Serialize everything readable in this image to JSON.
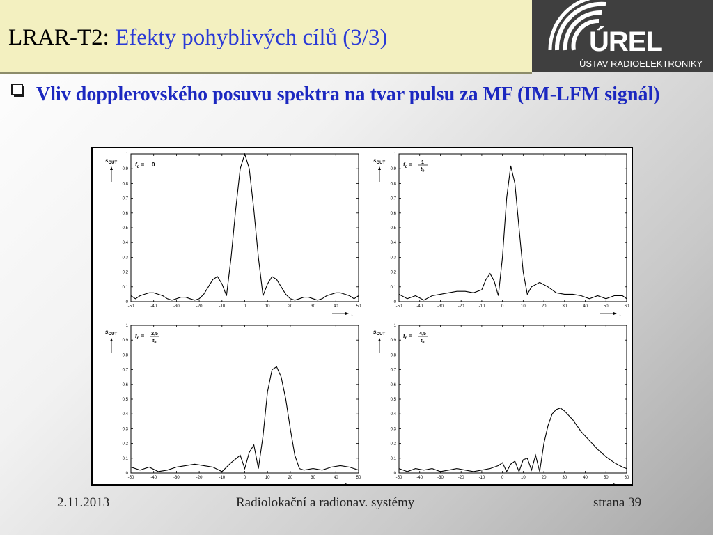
{
  "slide": {
    "title_prefix": "LRAR-T2:",
    "title_main": "Efekty pohyblivých cílů (3/3)",
    "heading": "Vliv dopplerovského posuvu spektra na tvar pulsu za MF (IM-LFM signál)",
    "logo_brand": "ÚREL",
    "logo_dept": "ÚSTAV RADIOELEKTRONIKY",
    "footer_date": "2.11.2013",
    "footer_title": "Radiolokační a radionav. systémy",
    "footer_page": "strana 39"
  },
  "colors": {
    "accent": "#2a3ad6",
    "heading": "#1c28c0",
    "header_bg": "#f3f0c0",
    "logo_bg": "#3f3f3f"
  },
  "chart_data": [
    {
      "type": "line",
      "ylabel": "s",
      "ylabel_sub": "OUT",
      "xlabel": "τ",
      "fd_label": "0",
      "xlim": [
        -50,
        50
      ],
      "ylim": [
        0,
        1
      ],
      "xticks": [
        "-50",
        "-40",
        "-30",
        "-20",
        "-10",
        "0",
        "10",
        "20",
        "30",
        "40",
        "50"
      ],
      "yticks": [
        "0",
        "0.1",
        "0.2",
        "0.3",
        "0.4",
        "0.5",
        "0.6",
        "0.7",
        "0.8",
        "0.9",
        "1"
      ],
      "x": [
        -50,
        -48,
        -46,
        -44,
        -42,
        -40,
        -38,
        -36,
        -34,
        -32,
        -30,
        -28,
        -26,
        -24,
        -22,
        -20,
        -18,
        -16,
        -14,
        -12,
        -10,
        -8,
        -6,
        -4,
        -2,
        0,
        2,
        4,
        6,
        8,
        10,
        12,
        14,
        16,
        18,
        20,
        22,
        24,
        26,
        28,
        30,
        32,
        34,
        36,
        38,
        40,
        42,
        44,
        46,
        48,
        50
      ],
      "y": [
        0.04,
        0.02,
        0.04,
        0.05,
        0.06,
        0.06,
        0.05,
        0.04,
        0.02,
        0.01,
        0.02,
        0.03,
        0.03,
        0.02,
        0.01,
        0.02,
        0.05,
        0.1,
        0.15,
        0.17,
        0.12,
        0.04,
        0.3,
        0.62,
        0.9,
        1.0,
        0.9,
        0.62,
        0.3,
        0.04,
        0.12,
        0.17,
        0.15,
        0.1,
        0.05,
        0.02,
        0.01,
        0.02,
        0.03,
        0.03,
        0.02,
        0.01,
        0.02,
        0.04,
        0.05,
        0.06,
        0.06,
        0.05,
        0.04,
        0.02,
        0.04
      ]
    },
    {
      "type": "line",
      "ylabel": "s",
      "ylabel_sub": "OUT",
      "xlabel": "τ",
      "fd_label": "1",
      "fd_den": "t",
      "fd_den_sub": "b",
      "xlim": [
        -50,
        60
      ],
      "ylim": [
        0,
        1
      ],
      "xticks": [
        "-50",
        "-40",
        "-30",
        "-20",
        "-10",
        "0",
        "10",
        "20",
        "30",
        "40",
        "50",
        "60"
      ],
      "yticks": [
        "0",
        "0.1",
        "0.2",
        "0.3",
        "0.4",
        "0.5",
        "0.6",
        "0.7",
        "0.8",
        "0.9",
        "1"
      ],
      "x": [
        -50,
        -46,
        -42,
        -38,
        -34,
        -30,
        -26,
        -22,
        -18,
        -14,
        -10,
        -8,
        -6,
        -4,
        -2,
        0,
        2,
        4,
        6,
        8,
        10,
        12,
        14,
        18,
        22,
        26,
        30,
        34,
        38,
        42,
        46,
        50,
        54,
        58,
        60
      ],
      "y": [
        0.05,
        0.02,
        0.04,
        0.01,
        0.04,
        0.05,
        0.06,
        0.07,
        0.07,
        0.06,
        0.08,
        0.15,
        0.19,
        0.14,
        0.04,
        0.3,
        0.7,
        0.92,
        0.8,
        0.5,
        0.2,
        0.05,
        0.1,
        0.13,
        0.1,
        0.06,
        0.05,
        0.05,
        0.04,
        0.02,
        0.04,
        0.02,
        0.04,
        0.04,
        0.02
      ]
    },
    {
      "type": "line",
      "ylabel": "s",
      "ylabel_sub": "OUT",
      "xlabel": "τ",
      "fd_label": "2,5",
      "fd_den": "t",
      "fd_den_sub": "b",
      "xlim": [
        -50,
        50
      ],
      "ylim": [
        0,
        1
      ],
      "xticks": [
        "-50",
        "-40",
        "-30",
        "-20",
        "-10",
        "0",
        "10",
        "20",
        "30",
        "40",
        "50"
      ],
      "yticks": [
        "0",
        "0.1",
        "0.2",
        "0.3",
        "0.4",
        "0.5",
        "0.6",
        "0.7",
        "0.8",
        "0.9",
        "1"
      ],
      "x": [
        -50,
        -46,
        -42,
        -38,
        -34,
        -30,
        -26,
        -22,
        -18,
        -14,
        -10,
        -6,
        -2,
        0,
        2,
        4,
        6,
        8,
        10,
        12,
        14,
        16,
        18,
        20,
        22,
        24,
        26,
        30,
        34,
        38,
        42,
        46,
        50
      ],
      "y": [
        0.04,
        0.02,
        0.04,
        0.01,
        0.02,
        0.04,
        0.05,
        0.06,
        0.05,
        0.04,
        0.01,
        0.07,
        0.12,
        0.03,
        0.14,
        0.19,
        0.03,
        0.25,
        0.55,
        0.7,
        0.72,
        0.65,
        0.5,
        0.3,
        0.12,
        0.03,
        0.02,
        0.03,
        0.02,
        0.04,
        0.05,
        0.04,
        0.02
      ]
    },
    {
      "type": "line",
      "ylabel": "s",
      "ylabel_sub": "OUT",
      "xlabel": "τ",
      "fd_label": "4,5",
      "fd_den": "t",
      "fd_den_sub": "b",
      "xlim": [
        -50,
        60
      ],
      "ylim": [
        0,
        1
      ],
      "xticks": [
        "-50",
        "-40",
        "-30",
        "-20",
        "-10",
        "0",
        "10",
        "20",
        "30",
        "40",
        "50",
        "60"
      ],
      "yticks": [
        "0",
        "0.1",
        "0.2",
        "0.3",
        "0.4",
        "0.5",
        "0.6",
        "0.7",
        "0.8",
        "0.9",
        "1"
      ],
      "x": [
        -50,
        -46,
        -42,
        -38,
        -34,
        -30,
        -26,
        -22,
        -18,
        -14,
        -10,
        -6,
        -2,
        0,
        2,
        4,
        6,
        8,
        10,
        12,
        14,
        16,
        18,
        20,
        22,
        24,
        26,
        28,
        30,
        34,
        38,
        42,
        46,
        50,
        54,
        58,
        60
      ],
      "y": [
        0.03,
        0.01,
        0.03,
        0.02,
        0.03,
        0.01,
        0.02,
        0.03,
        0.02,
        0.01,
        0.02,
        0.03,
        0.05,
        0.07,
        0.01,
        0.06,
        0.08,
        0.01,
        0.09,
        0.1,
        0.02,
        0.12,
        0.01,
        0.2,
        0.32,
        0.4,
        0.43,
        0.44,
        0.42,
        0.36,
        0.28,
        0.22,
        0.16,
        0.11,
        0.07,
        0.04,
        0.03
      ]
    }
  ]
}
